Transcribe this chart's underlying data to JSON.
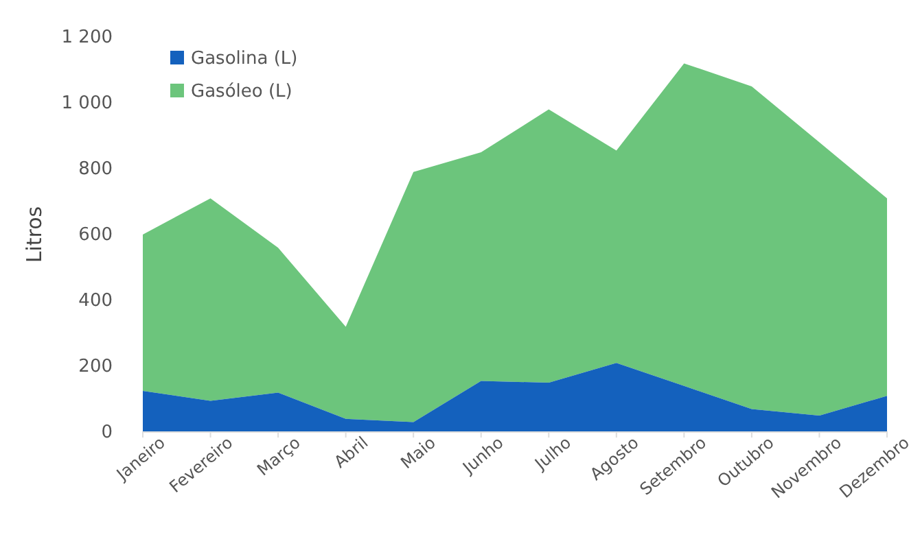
{
  "chart_data": {
    "type": "area",
    "stacked": true,
    "ylabel": "Litros",
    "categories": [
      "Janeiro",
      "Fevereiro",
      "Março",
      "Abril",
      "Maio",
      "Junho",
      "Julho",
      "Agosto",
      "Setembro",
      "Outubro",
      "Novembro",
      "Dezembro"
    ],
    "series": [
      {
        "name": "Gasolina (L)",
        "color": "#1461bd",
        "values": [
          125,
          95,
          120,
          40,
          30,
          155,
          150,
          210,
          140,
          70,
          50,
          110
        ]
      },
      {
        "name": "Gasóleo (L)",
        "color": "#6cc57c",
        "values": [
          475,
          615,
          440,
          280,
          760,
          695,
          830,
          645,
          980,
          980,
          830,
          600
        ]
      }
    ],
    "ylim": [
      0,
      1200
    ],
    "yticks": [
      0,
      200,
      400,
      600,
      800,
      {
        "value": 1000,
        "label": "1 000"
      },
      {
        "value": 1200,
        "label": "1 200"
      }
    ],
    "legend": "top left"
  }
}
